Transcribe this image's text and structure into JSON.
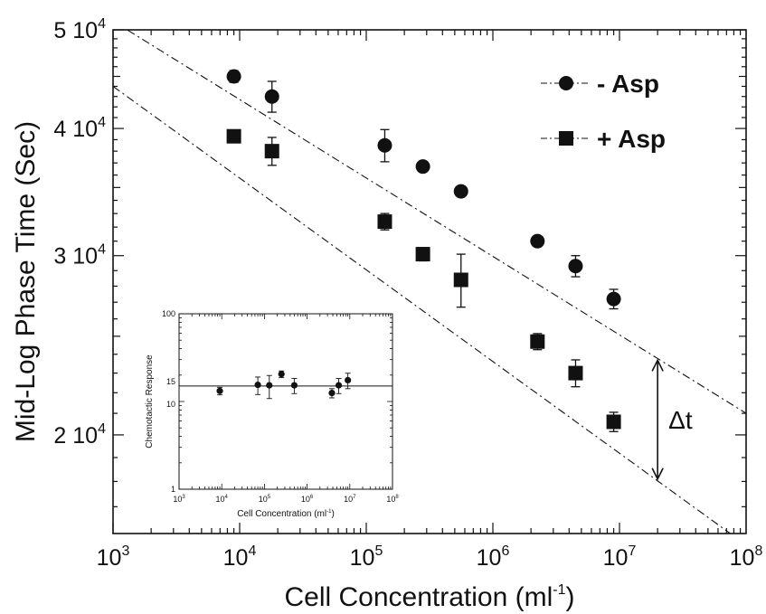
{
  "chart_data": [
    {
      "type": "scatter",
      "title": "",
      "xlabel": "Cell Concentration (ml",
      "xlabel_sup": "-1",
      "xlabel_tail": ")",
      "ylabel": "Mid-Log Phase Time (Sec)",
      "xscale": "log",
      "yscale": "log",
      "xlim": [
        1000,
        100000000
      ],
      "ylim": [
        16000,
        50000
      ],
      "x_ticks": [
        {
          "base": "10",
          "exp": "3"
        },
        {
          "base": "10",
          "exp": "4"
        },
        {
          "base": "10",
          "exp": "5"
        },
        {
          "base": "10",
          "exp": "6"
        },
        {
          "base": "10",
          "exp": "7"
        },
        {
          "base": "10",
          "exp": "8"
        }
      ],
      "y_ticks": [
        {
          "value": 20000,
          "base": "2 10",
          "exp": "4"
        },
        {
          "value": 30000,
          "base": "3 10",
          "exp": "4"
        },
        {
          "value": 40000,
          "base": "4 10",
          "exp": "4"
        },
        {
          "value": 50000,
          "base": "5 10",
          "exp": "4"
        }
      ],
      "grid": false,
      "legend_position": "top-right",
      "series": [
        {
          "name": "-  Asp",
          "marker": "circle",
          "points": [
            {
              "x": 9000,
              "y": 45000,
              "err": 600
            },
            {
              "x": 18000,
              "y": 43000,
              "err": 1500
            },
            {
              "x": 140000,
              "y": 38500,
              "err": 1400
            },
            {
              "x": 280000,
              "y": 36700,
              "err": 300
            },
            {
              "x": 560000,
              "y": 34700,
              "err": 300
            },
            {
              "x": 2250000,
              "y": 31000,
              "err": 300
            },
            {
              "x": 4500000,
              "y": 29300,
              "err": 700
            },
            {
              "x": 9000000,
              "y": 27200,
              "err": 600
            }
          ],
          "fit": {
            "x": [
              1000,
              100000000
            ],
            "y": [
              51000,
              21000
            ]
          }
        },
        {
          "name": "+ Asp",
          "marker": "square",
          "points": [
            {
              "x": 9000,
              "y": 39300,
              "err": 300
            },
            {
              "x": 18000,
              "y": 38000,
              "err": 1200
            },
            {
              "x": 140000,
              "y": 32400,
              "err": 600
            },
            {
              "x": 280000,
              "y": 30100,
              "err": 450
            },
            {
              "x": 560000,
              "y": 28400,
              "err": 1700
            },
            {
              "x": 2250000,
              "y": 24700,
              "err": 450
            },
            {
              "x": 4500000,
              "y": 23000,
              "err": 700
            },
            {
              "x": 9000000,
              "y": 20600,
              "err": 450
            }
          ],
          "fit": {
            "x": [
              1000,
              75000000
            ],
            "y": [
              44000,
              16000
            ]
          }
        }
      ],
      "annotations": [
        {
          "text": "Δt",
          "x": 20000000
        }
      ]
    },
    {
      "type": "scatter",
      "inset": true,
      "xlabel": "Cell Concentration (ml",
      "xlabel_sup": "-1",
      "xlabel_tail": ")",
      "ylabel": "Chemotactic Response",
      "xscale": "log",
      "yscale": "log",
      "xlim": [
        1000,
        100000000
      ],
      "ylim": [
        1,
        100
      ],
      "x_ticks": [
        {
          "base": "10",
          "exp": "3"
        },
        {
          "base": "10",
          "exp": "4"
        },
        {
          "base": "10",
          "exp": "5"
        },
        {
          "base": "10",
          "exp": "6"
        },
        {
          "base": "10",
          "exp": "7"
        },
        {
          "base": "10",
          "exp": "8"
        }
      ],
      "y_ticks": [
        {
          "value": 1,
          "label": "1"
        },
        {
          "value": 10,
          "label": "10"
        },
        {
          "value": 15,
          "label": "15"
        },
        {
          "value": 100,
          "label": "100"
        }
      ],
      "reference_line": 15,
      "points": [
        {
          "x": 9000,
          "y": 13.2,
          "err": 1.3
        },
        {
          "x": 70000,
          "y": 15.5,
          "err": 3.5
        },
        {
          "x": 130000,
          "y": 15.3,
          "err": 4.5
        },
        {
          "x": 250000,
          "y": 20.5,
          "err": 1.8
        },
        {
          "x": 500000,
          "y": 15.3,
          "err": 3.0
        },
        {
          "x": 3800000,
          "y": 12.5,
          "err": 1.5
        },
        {
          "x": 5500000,
          "y": 15.3,
          "err": 3.0
        },
        {
          "x": 9000000,
          "y": 17.5,
          "err": 3.5
        }
      ]
    }
  ]
}
